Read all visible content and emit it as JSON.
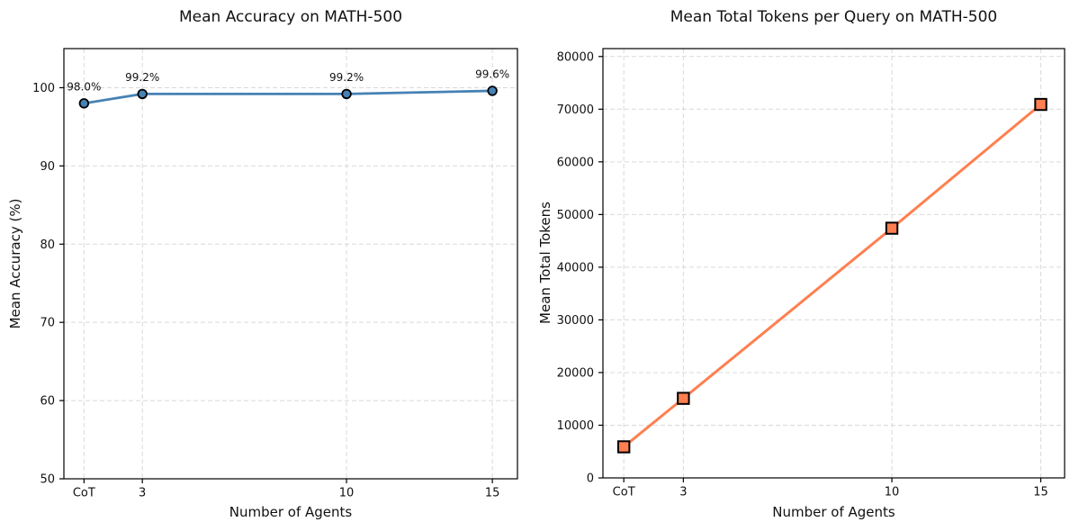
{
  "figure": {
    "background": "#ffffff",
    "grid_color": "#d9d9d9",
    "spine_color": "#000000",
    "text_color": "#111111"
  },
  "chart_data": [
    {
      "type": "line",
      "title": "Mean Accuracy on MATH-500",
      "xlabel": "Number of Agents",
      "ylabel": "Mean Accuracy (%)",
      "categories": [
        "CoT",
        "3",
        "10",
        "15"
      ],
      "x": [
        1,
        3,
        10,
        15
      ],
      "values": [
        98.0,
        99.2,
        99.2,
        99.6
      ],
      "point_labels": [
        "98.0%",
        "99.2%",
        "99.2%",
        "99.6%"
      ],
      "xlim": [
        0.31,
        15.86
      ],
      "ylim": [
        50,
        105
      ],
      "yticks": [
        50,
        60,
        70,
        80,
        90,
        100
      ],
      "grid": true,
      "legend": "none",
      "line_color": "#4682B4",
      "line_width": 2.8,
      "marker": "circle",
      "marker_face": "#4682B4",
      "marker_edge": "#000000"
    },
    {
      "type": "line",
      "title": "Mean Total Tokens per Query on MATH-500",
      "xlabel": "Number of Agents",
      "ylabel": "Mean Total Tokens",
      "categories": [
        "CoT",
        "3",
        "10",
        "15"
      ],
      "x": [
        1,
        3,
        10,
        15
      ],
      "values": [
        5900,
        15100,
        47400,
        70900
      ],
      "point_labels": [],
      "xlim": [
        0.3,
        15.8
      ],
      "ylim": [
        0,
        81500
      ],
      "yticks": [
        0,
        10000,
        20000,
        30000,
        40000,
        50000,
        60000,
        70000,
        80000
      ],
      "grid": true,
      "legend": "none",
      "line_color": "#FF7F50",
      "line_width": 3,
      "marker": "square",
      "marker_face": "#FF7F50",
      "marker_edge": "#000000"
    }
  ]
}
